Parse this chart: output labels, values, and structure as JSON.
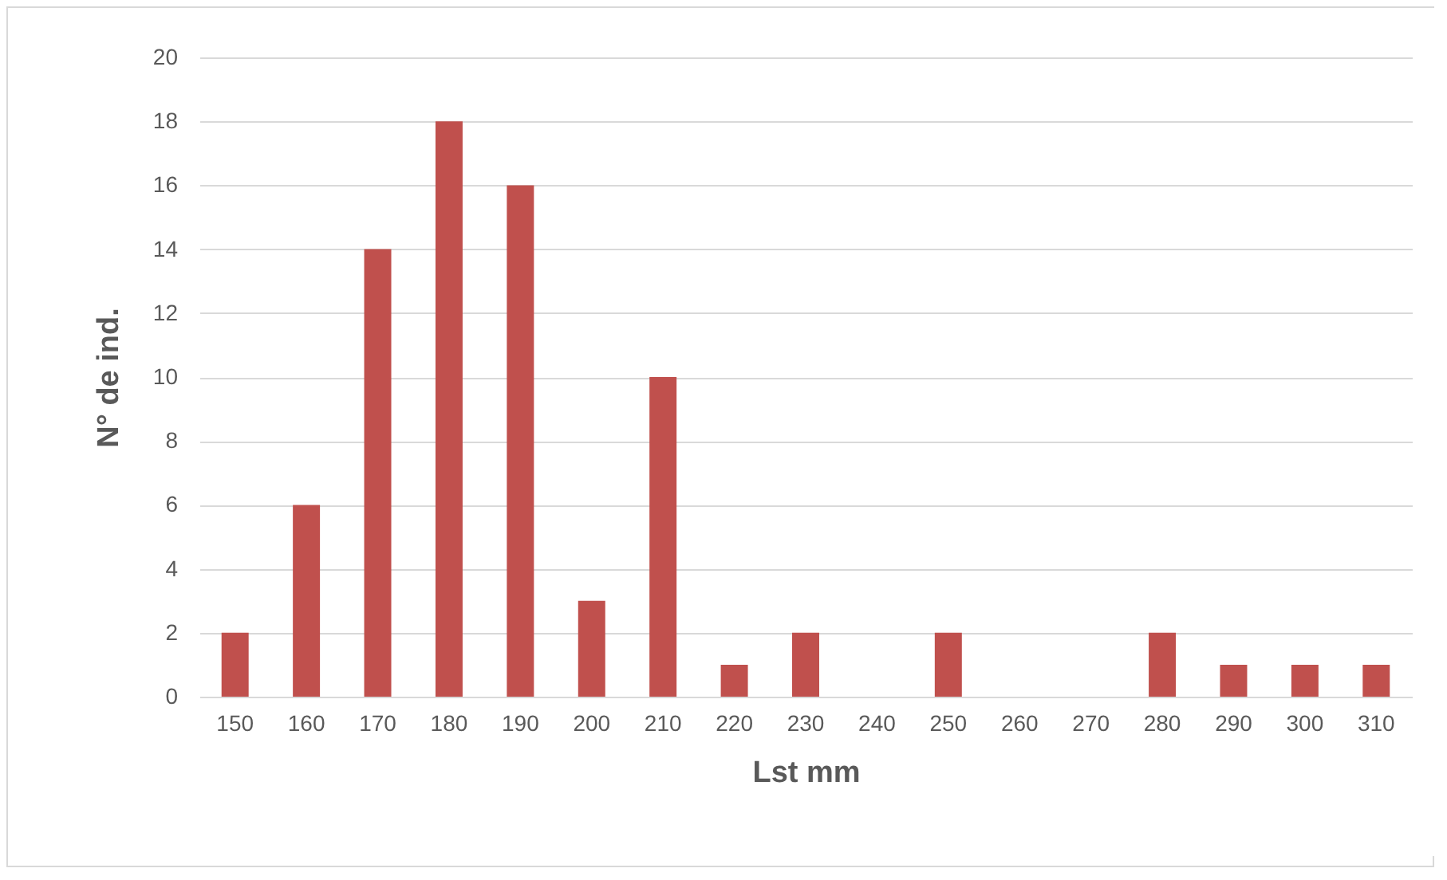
{
  "chart_data": {
    "type": "bar",
    "xlabel": "Lst mm",
    "ylabel": "N° de ind.",
    "categories": [
      "150",
      "160",
      "170",
      "180",
      "190",
      "200",
      "210",
      "220",
      "230",
      "240",
      "250",
      "260",
      "270",
      "280",
      "290",
      "300",
      "310"
    ],
    "values": [
      2,
      6,
      14,
      18,
      16,
      3,
      10,
      1,
      2,
      0,
      2,
      0,
      0,
      2,
      1,
      1,
      1
    ],
    "color": "#c0504d",
    "ylim": [
      0,
      20
    ],
    "yticks": [
      0,
      2,
      4,
      6,
      8,
      10,
      12,
      14,
      16,
      18,
      20
    ],
    "grid": "y"
  }
}
